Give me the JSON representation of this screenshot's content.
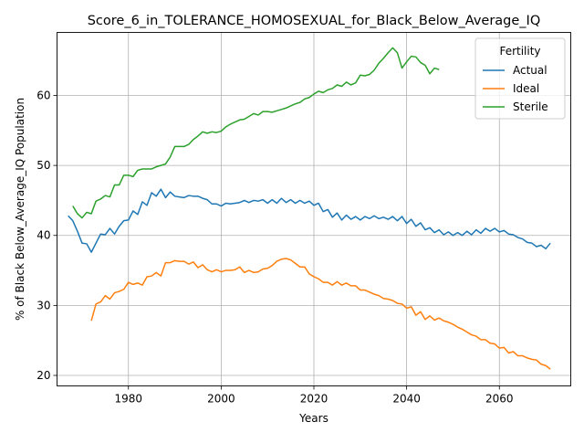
{
  "chart_data": {
    "type": "line",
    "title": "Score_6_in_TOLERANCE_HOMOSEXUAL_for_Black_Below_Average_IQ",
    "xlabel": "Years",
    "ylabel": "% of Black Below_Average_IQ Population",
    "xlim": [
      1964.6,
      2075.4
    ],
    "ylim": [
      18.5,
      69.0
    ],
    "xticks": [
      1980,
      2000,
      2020,
      2040,
      2060
    ],
    "yticks": [
      20,
      30,
      40,
      50,
      60
    ],
    "grid": true,
    "legend": {
      "title": "Fertility",
      "placement": "top-right"
    },
    "series": [
      {
        "name": "Actual",
        "color": "#1f77b4",
        "points": [
          [
            1967,
            42.8
          ],
          [
            1968,
            42.1
          ],
          [
            1969,
            40.6
          ],
          [
            1970,
            38.9
          ],
          [
            1971,
            38.8
          ],
          [
            1972,
            37.6
          ],
          [
            1973,
            38.9
          ],
          [
            1974,
            40.2
          ],
          [
            1975,
            40.1
          ],
          [
            1976,
            41.0
          ],
          [
            1977,
            40.2
          ],
          [
            1978,
            41.3
          ],
          [
            1979,
            42.1
          ],
          [
            1980,
            42.2
          ],
          [
            1981,
            43.5
          ],
          [
            1982,
            43.0
          ],
          [
            1983,
            44.8
          ],
          [
            1984,
            44.3
          ],
          [
            1985,
            46.1
          ],
          [
            1986,
            45.6
          ],
          [
            1987,
            46.6
          ],
          [
            1988,
            45.4
          ],
          [
            1989,
            46.2
          ],
          [
            1990,
            45.6
          ],
          [
            1991,
            45.5
          ],
          [
            1992,
            45.4
          ],
          [
            1993,
            45.7
          ],
          [
            1994,
            45.6
          ],
          [
            1995,
            45.6
          ],
          [
            1996,
            45.3
          ],
          [
            1997,
            45.1
          ],
          [
            1998,
            44.5
          ],
          [
            1999,
            44.5
          ],
          [
            2000,
            44.2
          ],
          [
            2001,
            44.6
          ],
          [
            2002,
            44.5
          ],
          [
            2003,
            44.6
          ],
          [
            2004,
            44.7
          ],
          [
            2005,
            45.0
          ],
          [
            2006,
            44.7
          ],
          [
            2007,
            45.0
          ],
          [
            2008,
            44.9
          ],
          [
            2009,
            45.1
          ],
          [
            2010,
            44.6
          ],
          [
            2011,
            45.1
          ],
          [
            2012,
            44.6
          ],
          [
            2013,
            45.3
          ],
          [
            2014,
            44.7
          ],
          [
            2015,
            45.1
          ],
          [
            2016,
            44.6
          ],
          [
            2017,
            45.0
          ],
          [
            2018,
            44.6
          ],
          [
            2019,
            44.9
          ],
          [
            2020,
            44.3
          ],
          [
            2021,
            44.6
          ],
          [
            2022,
            43.4
          ],
          [
            2023,
            43.7
          ],
          [
            2024,
            42.6
          ],
          [
            2025,
            43.2
          ],
          [
            2026,
            42.2
          ],
          [
            2027,
            42.9
          ],
          [
            2028,
            42.3
          ],
          [
            2029,
            42.7
          ],
          [
            2030,
            42.2
          ],
          [
            2031,
            42.7
          ],
          [
            2032,
            42.4
          ],
          [
            2033,
            42.8
          ],
          [
            2034,
            42.4
          ],
          [
            2035,
            42.6
          ],
          [
            2036,
            42.3
          ],
          [
            2037,
            42.7
          ],
          [
            2038,
            42.1
          ],
          [
            2039,
            42.7
          ],
          [
            2040,
            41.7
          ],
          [
            2041,
            42.3
          ],
          [
            2042,
            41.3
          ],
          [
            2043,
            41.8
          ],
          [
            2044,
            40.8
          ],
          [
            2045,
            41.1
          ],
          [
            2046,
            40.4
          ],
          [
            2047,
            40.8
          ],
          [
            2048,
            40.1
          ],
          [
            2049,
            40.5
          ],
          [
            2050,
            40.0
          ],
          [
            2051,
            40.4
          ],
          [
            2052,
            40.0
          ],
          [
            2053,
            40.6
          ],
          [
            2054,
            40.1
          ],
          [
            2055,
            40.8
          ],
          [
            2056,
            40.3
          ],
          [
            2057,
            41.0
          ],
          [
            2058,
            40.6
          ],
          [
            2059,
            41.0
          ],
          [
            2060,
            40.5
          ],
          [
            2061,
            40.7
          ],
          [
            2062,
            40.2
          ],
          [
            2063,
            40.1
          ],
          [
            2064,
            39.7
          ],
          [
            2065,
            39.5
          ],
          [
            2066,
            39.0
          ],
          [
            2067,
            38.9
          ],
          [
            2068,
            38.4
          ],
          [
            2069,
            38.6
          ],
          [
            2070,
            38.1
          ],
          [
            2071,
            38.9
          ]
        ]
      },
      {
        "name": "Ideal",
        "color": "#ff7f0e",
        "points": [
          [
            1972,
            27.8
          ],
          [
            1973,
            30.2
          ],
          [
            1974,
            30.5
          ],
          [
            1975,
            31.4
          ],
          [
            1976,
            30.9
          ],
          [
            1977,
            31.8
          ],
          [
            1978,
            32.0
          ],
          [
            1979,
            32.3
          ],
          [
            1980,
            33.3
          ],
          [
            1981,
            33.0
          ],
          [
            1982,
            33.2
          ],
          [
            1983,
            32.9
          ],
          [
            1984,
            34.1
          ],
          [
            1985,
            34.2
          ],
          [
            1986,
            34.7
          ],
          [
            1987,
            34.2
          ],
          [
            1988,
            36.1
          ],
          [
            1989,
            36.1
          ],
          [
            1990,
            36.4
          ],
          [
            1991,
            36.3
          ],
          [
            1992,
            36.3
          ],
          [
            1993,
            35.9
          ],
          [
            1994,
            36.2
          ],
          [
            1995,
            35.4
          ],
          [
            1996,
            35.8
          ],
          [
            1997,
            35.1
          ],
          [
            1998,
            34.8
          ],
          [
            1999,
            35.1
          ],
          [
            2000,
            34.8
          ],
          [
            2001,
            35.0
          ],
          [
            2002,
            35.0
          ],
          [
            2003,
            35.1
          ],
          [
            2004,
            35.5
          ],
          [
            2005,
            34.7
          ],
          [
            2006,
            35.0
          ],
          [
            2007,
            34.7
          ],
          [
            2008,
            34.8
          ],
          [
            2009,
            35.2
          ],
          [
            2010,
            35.3
          ],
          [
            2011,
            35.7
          ],
          [
            2012,
            36.3
          ],
          [
            2013,
            36.6
          ],
          [
            2014,
            36.7
          ],
          [
            2015,
            36.5
          ],
          [
            2016,
            36.0
          ],
          [
            2017,
            35.5
          ],
          [
            2018,
            35.5
          ],
          [
            2019,
            34.5
          ],
          [
            2020,
            34.1
          ],
          [
            2021,
            33.8
          ],
          [
            2022,
            33.3
          ],
          [
            2023,
            33.3
          ],
          [
            2024,
            32.9
          ],
          [
            2025,
            33.4
          ],
          [
            2026,
            32.9
          ],
          [
            2027,
            33.2
          ],
          [
            2028,
            32.8
          ],
          [
            2029,
            32.8
          ],
          [
            2030,
            32.2
          ],
          [
            2031,
            32.2
          ],
          [
            2032,
            31.9
          ],
          [
            2033,
            31.6
          ],
          [
            2034,
            31.4
          ],
          [
            2035,
            31.0
          ],
          [
            2036,
            30.9
          ],
          [
            2037,
            30.7
          ],
          [
            2038,
            30.3
          ],
          [
            2039,
            30.2
          ],
          [
            2040,
            29.6
          ],
          [
            2041,
            29.8
          ],
          [
            2042,
            28.6
          ],
          [
            2043,
            29.1
          ],
          [
            2044,
            28.0
          ],
          [
            2045,
            28.5
          ],
          [
            2046,
            27.9
          ],
          [
            2047,
            28.2
          ],
          [
            2048,
            27.8
          ]
        ]
      },
      {
        "name": "Sterile",
        "color": "#2ca02c",
        "points": [
          [
            1968,
            44.2
          ],
          [
            1969,
            43.1
          ],
          [
            1970,
            42.5
          ],
          [
            1971,
            43.3
          ],
          [
            1972,
            43.1
          ],
          [
            1973,
            44.9
          ],
          [
            1974,
            45.2
          ],
          [
            1975,
            45.7
          ],
          [
            1976,
            45.5
          ],
          [
            1977,
            47.2
          ],
          [
            1978,
            47.2
          ],
          [
            1979,
            48.6
          ],
          [
            1980,
            48.6
          ],
          [
            1981,
            48.4
          ],
          [
            1982,
            49.3
          ],
          [
            1983,
            49.5
          ],
          [
            1984,
            49.5
          ],
          [
            1985,
            49.5
          ],
          [
            1986,
            49.8
          ],
          [
            1987,
            50.0
          ],
          [
            1988,
            50.2
          ],
          [
            1989,
            51.2
          ],
          [
            1990,
            52.7
          ],
          [
            1991,
            52.7
          ],
          [
            1992,
            52.7
          ],
          [
            1993,
            53.0
          ],
          [
            1994,
            53.7
          ],
          [
            1995,
            54.2
          ],
          [
            1996,
            54.8
          ],
          [
            1997,
            54.6
          ],
          [
            1998,
            54.8
          ],
          [
            1999,
            54.7
          ],
          [
            2000,
            54.9
          ],
          [
            2001,
            55.5
          ],
          [
            2002,
            55.9
          ],
          [
            2003,
            56.2
          ],
          [
            2004,
            56.5
          ],
          [
            2005,
            56.6
          ],
          [
            2006,
            57.0
          ],
          [
            2007,
            57.4
          ],
          [
            2008,
            57.2
          ],
          [
            2009,
            57.7
          ],
          [
            2010,
            57.7
          ],
          [
            2011,
            57.6
          ],
          [
            2012,
            57.8
          ],
          [
            2013,
            58.0
          ],
          [
            2014,
            58.2
          ],
          [
            2015,
            58.5
          ],
          [
            2016,
            58.8
          ],
          [
            2017,
            59.0
          ],
          [
            2018,
            59.5
          ],
          [
            2019,
            59.7
          ],
          [
            2020,
            60.2
          ],
          [
            2021,
            60.6
          ],
          [
            2022,
            60.4
          ],
          [
            2023,
            60.8
          ],
          [
            2024,
            61.0
          ],
          [
            2025,
            61.5
          ],
          [
            2026,
            61.3
          ],
          [
            2027,
            61.9
          ],
          [
            2028,
            61.5
          ],
          [
            2029,
            61.8
          ],
          [
            2030,
            62.9
          ],
          [
            2031,
            62.8
          ],
          [
            2032,
            63.0
          ],
          [
            2033,
            63.6
          ],
          [
            2034,
            64.6
          ],
          [
            2035,
            65.3
          ],
          [
            2036,
            66.1
          ],
          [
            2037,
            66.8
          ],
          [
            2038,
            66.1
          ],
          [
            2039,
            63.9
          ],
          [
            2040,
            64.8
          ],
          [
            2041,
            65.6
          ],
          [
            2042,
            65.5
          ],
          [
            2043,
            64.7
          ],
          [
            2044,
            64.3
          ],
          [
            2045,
            63.1
          ],
          [
            2046,
            63.9
          ],
          [
            2047,
            63.7
          ]
        ]
      }
    ]
  }
}
